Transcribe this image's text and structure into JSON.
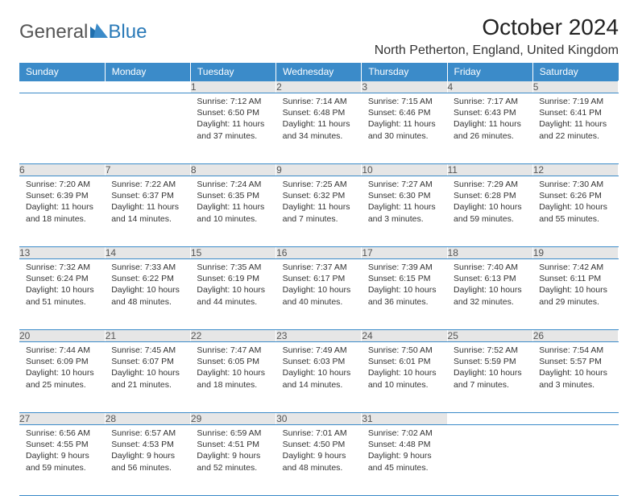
{
  "brand": {
    "part1": "General",
    "part2": "Blue"
  },
  "title": "October 2024",
  "location": "North Petherton, England, United Kingdom",
  "colors": {
    "header_bg": "#3b8bc9",
    "header_fg": "#ffffff",
    "daynum_bg": "#e6e6e6",
    "daynum_fg": "#555555",
    "cell_border": "#3b8bc9",
    "body_text": "#333333",
    "page_bg": "#ffffff",
    "logo_gray": "#555555",
    "logo_blue": "#2a7ab8"
  },
  "typography": {
    "title_fontsize": 28,
    "location_fontsize": 16,
    "header_fontsize": 12,
    "daynum_fontsize": 12,
    "cell_fontsize": 10.5
  },
  "day_headers": [
    "Sunday",
    "Monday",
    "Tuesday",
    "Wednesday",
    "Thursday",
    "Friday",
    "Saturday"
  ],
  "weeks": [
    [
      null,
      null,
      {
        "n": "1",
        "sr": "Sunrise: 7:12 AM",
        "ss": "Sunset: 6:50 PM",
        "d1": "Daylight: 11 hours",
        "d2": "and 37 minutes."
      },
      {
        "n": "2",
        "sr": "Sunrise: 7:14 AM",
        "ss": "Sunset: 6:48 PM",
        "d1": "Daylight: 11 hours",
        "d2": "and 34 minutes."
      },
      {
        "n": "3",
        "sr": "Sunrise: 7:15 AM",
        "ss": "Sunset: 6:46 PM",
        "d1": "Daylight: 11 hours",
        "d2": "and 30 minutes."
      },
      {
        "n": "4",
        "sr": "Sunrise: 7:17 AM",
        "ss": "Sunset: 6:43 PM",
        "d1": "Daylight: 11 hours",
        "d2": "and 26 minutes."
      },
      {
        "n": "5",
        "sr": "Sunrise: 7:19 AM",
        "ss": "Sunset: 6:41 PM",
        "d1": "Daylight: 11 hours",
        "d2": "and 22 minutes."
      }
    ],
    [
      {
        "n": "6",
        "sr": "Sunrise: 7:20 AM",
        "ss": "Sunset: 6:39 PM",
        "d1": "Daylight: 11 hours",
        "d2": "and 18 minutes."
      },
      {
        "n": "7",
        "sr": "Sunrise: 7:22 AM",
        "ss": "Sunset: 6:37 PM",
        "d1": "Daylight: 11 hours",
        "d2": "and 14 minutes."
      },
      {
        "n": "8",
        "sr": "Sunrise: 7:24 AM",
        "ss": "Sunset: 6:35 PM",
        "d1": "Daylight: 11 hours",
        "d2": "and 10 minutes."
      },
      {
        "n": "9",
        "sr": "Sunrise: 7:25 AM",
        "ss": "Sunset: 6:32 PM",
        "d1": "Daylight: 11 hours",
        "d2": "and 7 minutes."
      },
      {
        "n": "10",
        "sr": "Sunrise: 7:27 AM",
        "ss": "Sunset: 6:30 PM",
        "d1": "Daylight: 11 hours",
        "d2": "and 3 minutes."
      },
      {
        "n": "11",
        "sr": "Sunrise: 7:29 AM",
        "ss": "Sunset: 6:28 PM",
        "d1": "Daylight: 10 hours",
        "d2": "and 59 minutes."
      },
      {
        "n": "12",
        "sr": "Sunrise: 7:30 AM",
        "ss": "Sunset: 6:26 PM",
        "d1": "Daylight: 10 hours",
        "d2": "and 55 minutes."
      }
    ],
    [
      {
        "n": "13",
        "sr": "Sunrise: 7:32 AM",
        "ss": "Sunset: 6:24 PM",
        "d1": "Daylight: 10 hours",
        "d2": "and 51 minutes."
      },
      {
        "n": "14",
        "sr": "Sunrise: 7:33 AM",
        "ss": "Sunset: 6:22 PM",
        "d1": "Daylight: 10 hours",
        "d2": "and 48 minutes."
      },
      {
        "n": "15",
        "sr": "Sunrise: 7:35 AM",
        "ss": "Sunset: 6:19 PM",
        "d1": "Daylight: 10 hours",
        "d2": "and 44 minutes."
      },
      {
        "n": "16",
        "sr": "Sunrise: 7:37 AM",
        "ss": "Sunset: 6:17 PM",
        "d1": "Daylight: 10 hours",
        "d2": "and 40 minutes."
      },
      {
        "n": "17",
        "sr": "Sunrise: 7:39 AM",
        "ss": "Sunset: 6:15 PM",
        "d1": "Daylight: 10 hours",
        "d2": "and 36 minutes."
      },
      {
        "n": "18",
        "sr": "Sunrise: 7:40 AM",
        "ss": "Sunset: 6:13 PM",
        "d1": "Daylight: 10 hours",
        "d2": "and 32 minutes."
      },
      {
        "n": "19",
        "sr": "Sunrise: 7:42 AM",
        "ss": "Sunset: 6:11 PM",
        "d1": "Daylight: 10 hours",
        "d2": "and 29 minutes."
      }
    ],
    [
      {
        "n": "20",
        "sr": "Sunrise: 7:44 AM",
        "ss": "Sunset: 6:09 PM",
        "d1": "Daylight: 10 hours",
        "d2": "and 25 minutes."
      },
      {
        "n": "21",
        "sr": "Sunrise: 7:45 AM",
        "ss": "Sunset: 6:07 PM",
        "d1": "Daylight: 10 hours",
        "d2": "and 21 minutes."
      },
      {
        "n": "22",
        "sr": "Sunrise: 7:47 AM",
        "ss": "Sunset: 6:05 PM",
        "d1": "Daylight: 10 hours",
        "d2": "and 18 minutes."
      },
      {
        "n": "23",
        "sr": "Sunrise: 7:49 AM",
        "ss": "Sunset: 6:03 PM",
        "d1": "Daylight: 10 hours",
        "d2": "and 14 minutes."
      },
      {
        "n": "24",
        "sr": "Sunrise: 7:50 AM",
        "ss": "Sunset: 6:01 PM",
        "d1": "Daylight: 10 hours",
        "d2": "and 10 minutes."
      },
      {
        "n": "25",
        "sr": "Sunrise: 7:52 AM",
        "ss": "Sunset: 5:59 PM",
        "d1": "Daylight: 10 hours",
        "d2": "and 7 minutes."
      },
      {
        "n": "26",
        "sr": "Sunrise: 7:54 AM",
        "ss": "Sunset: 5:57 PM",
        "d1": "Daylight: 10 hours",
        "d2": "and 3 minutes."
      }
    ],
    [
      {
        "n": "27",
        "sr": "Sunrise: 6:56 AM",
        "ss": "Sunset: 4:55 PM",
        "d1": "Daylight: 9 hours",
        "d2": "and 59 minutes."
      },
      {
        "n": "28",
        "sr": "Sunrise: 6:57 AM",
        "ss": "Sunset: 4:53 PM",
        "d1": "Daylight: 9 hours",
        "d2": "and 56 minutes."
      },
      {
        "n": "29",
        "sr": "Sunrise: 6:59 AM",
        "ss": "Sunset: 4:51 PM",
        "d1": "Daylight: 9 hours",
        "d2": "and 52 minutes."
      },
      {
        "n": "30",
        "sr": "Sunrise: 7:01 AM",
        "ss": "Sunset: 4:50 PM",
        "d1": "Daylight: 9 hours",
        "d2": "and 48 minutes."
      },
      {
        "n": "31",
        "sr": "Sunrise: 7:02 AM",
        "ss": "Sunset: 4:48 PM",
        "d1": "Daylight: 9 hours",
        "d2": "and 45 minutes."
      },
      null,
      null
    ]
  ]
}
